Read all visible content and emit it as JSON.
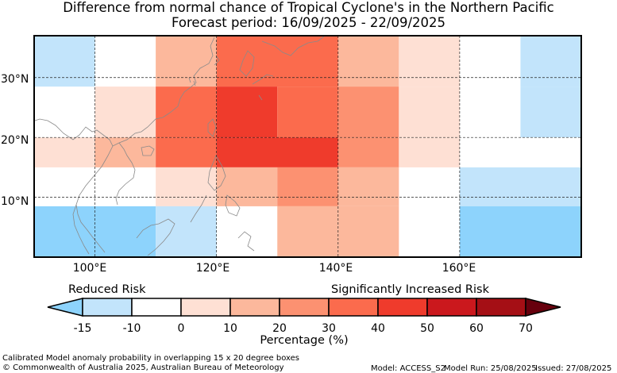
{
  "title": {
    "line1": "Difference from normal chance of Tropical Cyclone's in the Northern Pacific",
    "line2": "Forecast period: 16/09/2025 - 22/09/2025"
  },
  "map": {
    "lon_range": [
      90,
      180
    ],
    "lat_range": [
      0,
      37
    ],
    "x_ticks": [
      "100°E",
      "120°E",
      "140°E",
      "160°E"
    ],
    "y_ticks": [
      "30°N",
      "20°N",
      "10°N"
    ],
    "gridlines": "dashed",
    "cells": [
      {
        "lon": [
          90,
          100
        ],
        "lat": [
          28.5,
          37
        ],
        "color": "#c2e4fb"
      },
      {
        "lon": [
          110,
          120
        ],
        "lat": [
          28.5,
          37
        ],
        "color": "#fcb89c"
      },
      {
        "lon": [
          120,
          140
        ],
        "lat": [
          28.5,
          37
        ],
        "color": "#fb6b4d"
      },
      {
        "lon": [
          140,
          150
        ],
        "lat": [
          28.5,
          37
        ],
        "color": "#fcb89c"
      },
      {
        "lon": [
          150,
          160
        ],
        "lat": [
          28.5,
          37
        ],
        "color": "#fee0d4"
      },
      {
        "lon": [
          170,
          180
        ],
        "lat": [
          28.5,
          37
        ],
        "color": "#c2e4fb"
      },
      {
        "lon": [
          100,
          110
        ],
        "lat": [
          20,
          28.5
        ],
        "color": "#fee0d4"
      },
      {
        "lon": [
          110,
          120
        ],
        "lat": [
          20,
          28.5
        ],
        "color": "#fb6b4d"
      },
      {
        "lon": [
          120,
          130
        ],
        "lat": [
          20,
          28.5
        ],
        "color": "#ef3b2c"
      },
      {
        "lon": [
          130,
          140
        ],
        "lat": [
          20,
          28.5
        ],
        "color": "#fb6b4d"
      },
      {
        "lon": [
          140,
          150
        ],
        "lat": [
          20,
          28.5
        ],
        "color": "#fc9171"
      },
      {
        "lon": [
          150,
          160
        ],
        "lat": [
          20,
          28.5
        ],
        "color": "#fee0d4"
      },
      {
        "lon": [
          170,
          180
        ],
        "lat": [
          20,
          28.5
        ],
        "color": "#c2e4fb"
      },
      {
        "lon": [
          90,
          100
        ],
        "lat": [
          15,
          20
        ],
        "color": "#fee0d4"
      },
      {
        "lon": [
          100,
          110
        ],
        "lat": [
          15,
          20
        ],
        "color": "#fcb89c"
      },
      {
        "lon": [
          110,
          120
        ],
        "lat": [
          15,
          20
        ],
        "color": "#fb6b4d"
      },
      {
        "lon": [
          120,
          140
        ],
        "lat": [
          15,
          20
        ],
        "color": "#ef3b2c"
      },
      {
        "lon": [
          140,
          150
        ],
        "lat": [
          15,
          20
        ],
        "color": "#fc9171"
      },
      {
        "lon": [
          150,
          160
        ],
        "lat": [
          15,
          20
        ],
        "color": "#fee0d4"
      },
      {
        "lon": [
          110,
          120
        ],
        "lat": [
          8.5,
          15
        ],
        "color": "#fee0d4"
      },
      {
        "lon": [
          120,
          130
        ],
        "lat": [
          8.5,
          15
        ],
        "color": "#fcb89c"
      },
      {
        "lon": [
          130,
          140
        ],
        "lat": [
          8.5,
          15
        ],
        "color": "#fc9171"
      },
      {
        "lon": [
          140,
          150
        ],
        "lat": [
          8.5,
          15
        ],
        "color": "#fcb89c"
      },
      {
        "lon": [
          160,
          180
        ],
        "lat": [
          8.5,
          15
        ],
        "color": "#c2e4fb"
      },
      {
        "lon": [
          90,
          110
        ],
        "lat": [
          0,
          8.5
        ],
        "color": "#8dd3fc"
      },
      {
        "lon": [
          110,
          120
        ],
        "lat": [
          0,
          8.5
        ],
        "color": "#c2e4fb"
      },
      {
        "lon": [
          130,
          140
        ],
        "lat": [
          0,
          8.5
        ],
        "color": "#fcb89c"
      },
      {
        "lon": [
          140,
          150
        ],
        "lat": [
          0,
          8.5
        ],
        "color": "#fcb89c"
      },
      {
        "lon": [
          160,
          180
        ],
        "lat": [
          0,
          8.5
        ],
        "color": "#8dd3fc"
      }
    ]
  },
  "colorbar": {
    "left_label": "Reduced Risk",
    "right_label": "Significantly Increased Risk",
    "ticks": [
      "-15",
      "-10",
      "0",
      "10",
      "20",
      "30",
      "40",
      "50",
      "60",
      "70"
    ],
    "colors": [
      "#8dd3fc",
      "#c2e4fb",
      "#ffffff",
      "#fee0d4",
      "#fcb89c",
      "#fc9171",
      "#fb6b4d",
      "#ef3b2c",
      "#cb181d",
      "#a50f15",
      "#67000d"
    ],
    "title": "Percentage (%)"
  },
  "footer": {
    "description": "Calibrated Model anomaly probability in overlapping 15 x 20 degree boxes",
    "copyright": "© Commonwealth of Australia 2025, Australian Bureau of Meteorology",
    "model": "Model: ACCESS_S2",
    "model_run": "Model Run: 25/08/2025",
    "issued": "Issued: 27/08/2025"
  }
}
